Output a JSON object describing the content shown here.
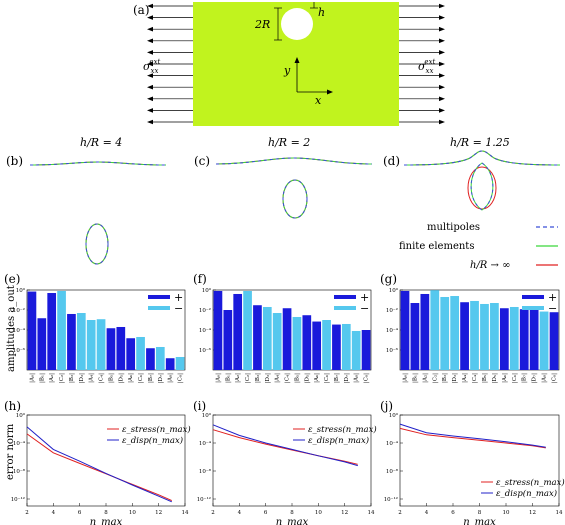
{
  "panels": {
    "a": {
      "label": "(a)",
      "twoR": "2R",
      "h": "h",
      "sigma_left": "σ",
      "sigma_right": "σ",
      "sigma_sup": "ext",
      "sigma_sub": "xx",
      "x": "x",
      "y": "y"
    },
    "b": {
      "label": "(b)",
      "title": "h/R = 4"
    },
    "c": {
      "label": "(c)",
      "title": "h/R = 2"
    },
    "d": {
      "label": "(d)",
      "title": "h/R = 1.25"
    },
    "e": {
      "label": "(e)"
    },
    "f": {
      "label": "(f)"
    },
    "g": {
      "label": "(g)"
    },
    "h": {
      "label": "(h)"
    },
    "i": {
      "label": "(i)"
    },
    "j": {
      "label": "(j)"
    }
  },
  "legend_shape": {
    "multipoles": "multipoles",
    "finite": "finite elements",
    "inf": "h/R → ∞",
    "colors": {
      "multipoles": "#3a4fd8",
      "finite": "#3ad83a",
      "inf": "#e02020"
    }
  },
  "bar_legend": {
    "plus": "+",
    "minus": "−"
  },
  "ylabel_bars": "amplitudes a_out",
  "ylabel_err": "error norm",
  "xlabel_err": "n_max",
  "err_legend": {
    "stress": "ε_stress(n_max)",
    "disp": "ε_disp(n_max)"
  },
  "chart_data": [
    {
      "panel": "e",
      "type": "bar",
      "yscale": "log",
      "ylim": [
        1e-08,
        1
      ],
      "yticks": [
        "10⁰",
        "10⁻²",
        "10⁻⁴",
        "10⁻⁶"
      ],
      "categories": [
        "|A₀|",
        "|B₁|",
        "|A₂|",
        "|C₂|",
        "|B₃|",
        "|D₃|",
        "|A₄|",
        "|C₄|",
        "|B₅|",
        "|D₅|",
        "|A₆|",
        "|C₆|",
        "|B₇|",
        "|D₇|",
        "|A₈|",
        "|C₈|"
      ],
      "values": [
        0.7,
        0.0015,
        0.5,
        0.8,
        0.004,
        0.005,
        0.001,
        0.0012,
        0.00015,
        0.0002,
        1.5e-05,
        2e-05,
        1.5e-06,
        2e-06,
        1.5e-07,
        2e-07
      ],
      "colors": [
        "#1a1adb",
        "#1a1adb",
        "#1a1adb",
        "#55c8ee",
        "#1a1adb",
        "#55c8ee",
        "#55c8ee",
        "#55c8ee",
        "#1a1adb",
        "#1a1adb",
        "#1a1adb",
        "#55c8ee",
        "#1a1adb",
        "#55c8ee",
        "#1a1adb",
        "#55c8ee"
      ],
      "series": [
        {
          "name": "+",
          "color": "#1a1adb"
        },
        {
          "name": "−",
          "color": "#55c8ee"
        }
      ]
    },
    {
      "panel": "f",
      "type": "bar",
      "yscale": "log",
      "ylim": [
        1e-08,
        1
      ],
      "yticks": [
        "10⁰",
        "10⁻²",
        "10⁻⁴",
        "10⁻⁶"
      ],
      "categories": [
        "|A₀|",
        "|B₁|",
        "|A₂|",
        "|C₂|",
        "|B₃|",
        "|D₃|",
        "|A₄|",
        "|C₄|",
        "|B₅|",
        "|D₅|",
        "|A₆|",
        "|C₆|",
        "|B₇|",
        "|D₇|",
        "|A₈|",
        "|C₈|"
      ],
      "values": [
        0.8,
        0.01,
        0.4,
        0.8,
        0.03,
        0.02,
        0.005,
        0.015,
        0.002,
        0.003,
        0.0007,
        0.001,
        0.00035,
        0.0004,
        8e-05,
        0.0001
      ],
      "colors": [
        "#1a1adb",
        "#1a1adb",
        "#1a1adb",
        "#55c8ee",
        "#1a1adb",
        "#55c8ee",
        "#55c8ee",
        "#1a1adb",
        "#55c8ee",
        "#1a1adb",
        "#1a1adb",
        "#55c8ee",
        "#1a1adb",
        "#55c8ee",
        "#55c8ee",
        "#1a1adb"
      ],
      "series": [
        {
          "name": "+",
          "color": "#1a1adb"
        },
        {
          "name": "−",
          "color": "#55c8ee"
        }
      ]
    },
    {
      "panel": "g",
      "type": "bar",
      "yscale": "log",
      "ylim": [
        1e-08,
        1
      ],
      "yticks": [
        "10⁰",
        "10⁻²",
        "10⁻⁴",
        "10⁻⁶"
      ],
      "categories": [
        "|A₀|",
        "|B₁|",
        "|A₂|",
        "|C₂|",
        "|B₃|",
        "|D₃|",
        "|A₄|",
        "|C₄|",
        "|B₅|",
        "|D₅|",
        "|A₆|",
        "|C₆|",
        "|B₇|",
        "|D₇|",
        "|A₈|",
        "|C₈|"
      ],
      "values": [
        0.8,
        0.05,
        0.4,
        0.95,
        0.2,
        0.25,
        0.06,
        0.08,
        0.04,
        0.05,
        0.015,
        0.02,
        0.012,
        0.01,
        0.007,
        0.006
      ],
      "colors": [
        "#1a1adb",
        "#1a1adb",
        "#1a1adb",
        "#55c8ee",
        "#55c8ee",
        "#55c8ee",
        "#1a1adb",
        "#55c8ee",
        "#55c8ee",
        "#55c8ee",
        "#1a1adb",
        "#55c8ee",
        "#1a1adb",
        "#1a1adb",
        "#55c8ee",
        "#1a1adb"
      ],
      "series": [
        {
          "name": "+",
          "color": "#1a1adb"
        },
        {
          "name": "−",
          "color": "#55c8ee"
        }
      ]
    },
    {
      "panel": "h",
      "type": "line",
      "yscale": "log",
      "xlim": [
        2,
        14
      ],
      "ylim": [
        1e-13,
        1
      ],
      "xticks": [
        "2",
        "4",
        "6",
        "8",
        "10",
        "12",
        "14"
      ],
      "yticks": [
        "10⁰",
        "10⁻⁴",
        "10⁻⁸",
        "10⁻¹²"
      ],
      "x": [
        2,
        4,
        6,
        8,
        10,
        12,
        13
      ],
      "series": [
        {
          "name": "ε_stress(n_max)",
          "color": "#e02020",
          "values": [
            0.002,
            4e-06,
            1.2e-07,
            4e-09,
            1.2e-10,
            4e-12,
            6e-13
          ]
        },
        {
          "name": "ε_disp(n_max)",
          "color": "#2020c8",
          "values": [
            0.02,
            1.2e-05,
            2.5e-07,
            4.5e-09,
            1e-10,
            2.5e-12,
            4e-13
          ]
        }
      ]
    },
    {
      "panel": "i",
      "type": "line",
      "yscale": "log",
      "xlim": [
        2,
        14
      ],
      "ylim": [
        1e-13,
        1
      ],
      "xticks": [
        "2",
        "4",
        "6",
        "8",
        "10",
        "12",
        "14"
      ],
      "yticks": [
        "10⁰",
        "10⁻⁴",
        "10⁻⁸",
        "10⁻¹²"
      ],
      "x": [
        2,
        4,
        6,
        8,
        10,
        12,
        13
      ],
      "series": [
        {
          "name": "ε_stress(n_max)",
          "color": "#e02020",
          "values": [
            0.008,
            0.0006,
            7e-05,
            1e-05,
            1.5e-06,
            2.5e-07,
            9e-08
          ]
        },
        {
          "name": "ε_disp(n_max)",
          "color": "#2020c8",
          "values": [
            0.04,
            0.0012,
            0.0001,
            1.2e-05,
            1.5e-06,
            2e-07,
            6e-08
          ]
        }
      ]
    },
    {
      "panel": "j",
      "type": "line",
      "yscale": "log",
      "xlim": [
        2,
        14
      ],
      "ylim": [
        1e-13,
        1
      ],
      "xticks": [
        "2",
        "4",
        "6",
        "8",
        "10",
        "12",
        "14"
      ],
      "yticks": [
        "10⁰",
        "10⁻⁴",
        "10⁻⁸",
        "10⁻¹²"
      ],
      "x": [
        2,
        4,
        6,
        8,
        10,
        12,
        13
      ],
      "series": [
        {
          "name": "ε_stress(n_max)",
          "color": "#e02020",
          "values": [
            0.012,
            0.0015,
            0.0006,
            0.00025,
            0.0001,
            4e-05,
            2e-05
          ]
        },
        {
          "name": "ε_disp(n_max)",
          "color": "#2020c8",
          "values": [
            0.05,
            0.003,
            0.001,
            0.0004,
            0.00015,
            5e-05,
            2.5e-05
          ]
        }
      ]
    }
  ]
}
